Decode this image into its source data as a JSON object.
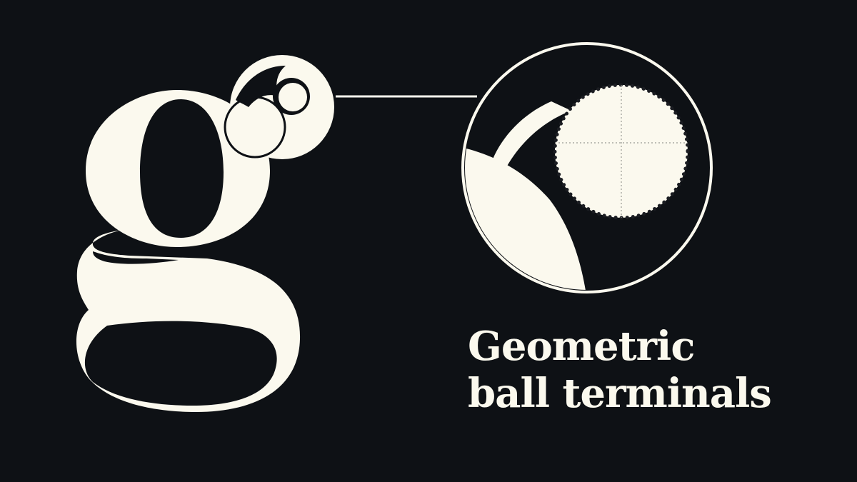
{
  "colors": {
    "background": "#0e1115",
    "ink": "#fbf9ee",
    "detail": "#9a9a94"
  },
  "illustration": {
    "glyph_icon": "lowercase-g-glyph-icon",
    "callout_icon": "ball-terminal-magnifier-icon",
    "connector_icon": "leader-line-icon"
  },
  "caption": {
    "line_1": "Geometric",
    "line_2": "ball terminals"
  }
}
